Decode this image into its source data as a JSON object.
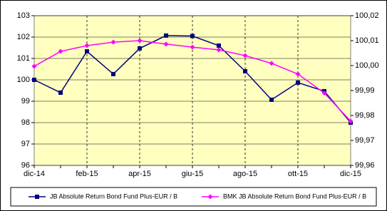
{
  "chart_data": {
    "type": "line",
    "categories": [
      "dic-14",
      null,
      "feb-15",
      null,
      "apr-15",
      null,
      "giu-15",
      null,
      "ago-15",
      null,
      "ott-15",
      null,
      "dic-15"
    ],
    "series": [
      {
        "name": "JB Absolute Return Bond Fund Plus-EUR / B",
        "color": "#000080",
        "marker": "square",
        "values": [
          100.0,
          99.4,
          101.33,
          100.27,
          101.47,
          102.07,
          102.05,
          101.6,
          100.4,
          99.07,
          99.87,
          99.47,
          98.0
        ]
      },
      {
        "name": "BMK JB Absolute Return Bond Fund Plus-EUR / B",
        "color": "#ff00ff",
        "marker": "diamond",
        "axis": "y2",
        "values": [
          99.9997,
          100.0057,
          100.008,
          100.0094,
          100.01,
          100.0086,
          100.0074,
          100.0063,
          100.004,
          100.0009,
          99.9966,
          99.989,
          99.9777
        ]
      }
    ],
    "ylim": [
      96,
      103
    ],
    "yticks": [
      96,
      97,
      98,
      99,
      100,
      101,
      102,
      103
    ],
    "y2lim": [
      99.96,
      100.02
    ],
    "y2ticks": [
      {
        "value": 99.96,
        "label": "99,96"
      },
      {
        "value": 99.97,
        "label": "99,97"
      },
      {
        "value": 99.98,
        "label": "99,98"
      },
      {
        "value": 99.99,
        "label": "99,99"
      },
      {
        "value": 100.0,
        "label": "100,00"
      },
      {
        "value": 100.01,
        "label": "100,01"
      },
      {
        "value": 100.02,
        "label": "100,02"
      }
    ],
    "grid": true,
    "legend": "bottom"
  }
}
